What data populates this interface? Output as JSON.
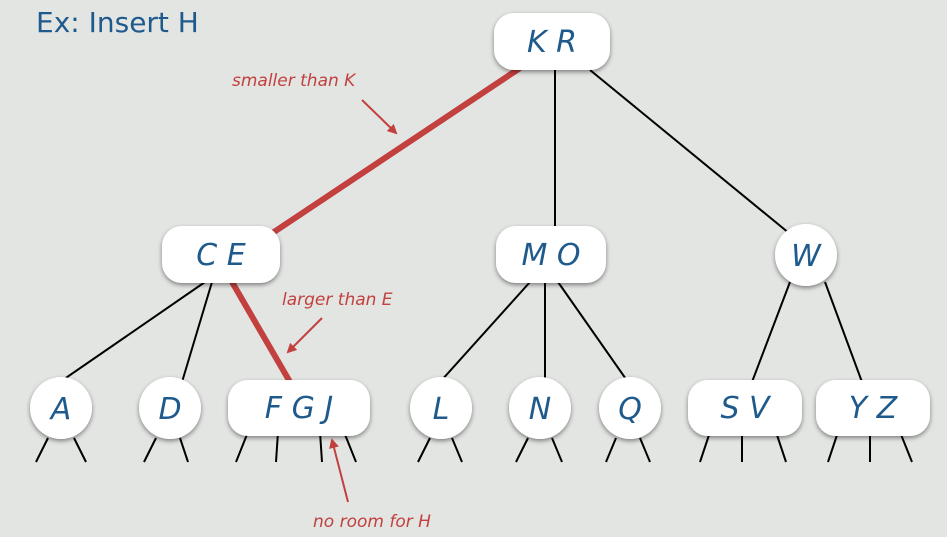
{
  "title": "Ex: Insert H",
  "nodes": {
    "root": "K R",
    "ce": "C E",
    "mo": "M O",
    "w": "W",
    "a": "A",
    "d": "D",
    "fgj": "F G J",
    "l": "L",
    "n": "N",
    "q": "Q",
    "sv": "S V",
    "yz": "Y Z"
  },
  "annotations": {
    "smaller": "smaller than K",
    "larger": "larger than E",
    "noroom": "no room for H"
  },
  "colors": {
    "background": "#e3e5e3",
    "node_text": "#1f5a8c",
    "highlight": "#c2413f",
    "edge": "#000000"
  }
}
